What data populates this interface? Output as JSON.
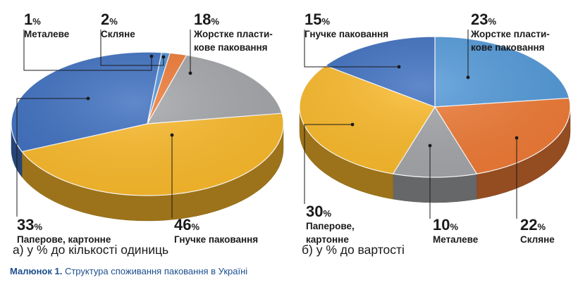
{
  "chart_data": [
    {
      "type": "pie",
      "subtitle": "а) у % до кількості одиниць",
      "slices": [
        {
          "label": [
            "Металеве"
          ],
          "value": 1,
          "color": "#4d8fd6"
        },
        {
          "label": [
            "Скляне"
          ],
          "value": 2,
          "color": "#ef7a35"
        },
        {
          "label": [
            "Жорстке пласти-",
            "кове паковання"
          ],
          "value": 18,
          "color": "#a4a6a9"
        },
        {
          "label": [
            "Гнучке паковання"
          ],
          "value": 46,
          "color": "#fbba2a"
        },
        {
          "label": [
            "Паперове, картонне"
          ],
          "value": 33,
          "color": "#3d6fc0"
        }
      ]
    },
    {
      "type": "pie",
      "subtitle": "б) у % до вартості",
      "slices": [
        {
          "label": [
            "Жорстке пласти-",
            "кове паковання"
          ],
          "value": 23,
          "color": "#5299d9"
        },
        {
          "label": [
            "Скляне"
          ],
          "value": 22,
          "color": "#ef7a35"
        },
        {
          "label": [
            "Металеве"
          ],
          "value": 10,
          "color": "#a4a6a9"
        },
        {
          "label": [
            "Паперове,",
            "картонне"
          ],
          "value": 30,
          "color": "#fbba2a"
        },
        {
          "label": [
            "Гнучке паковання"
          ],
          "value": 15,
          "color": "#3d6fc0"
        }
      ]
    }
  ],
  "caption": {
    "prefix": "Малюнок 1.",
    "text": "Структура споживання паковання в Україні"
  }
}
